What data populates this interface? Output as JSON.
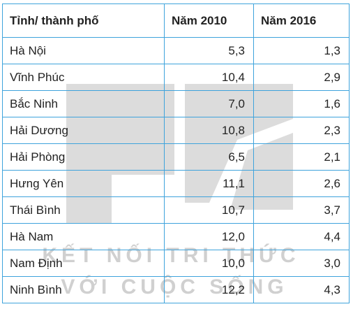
{
  "table": {
    "headers": [
      "Tỉnh/ thành phố",
      "Năm 2010",
      "Năm 2016"
    ],
    "rows": [
      {
        "province": "Hà Nội",
        "y2010": "5,3",
        "y2016": "1,3"
      },
      {
        "province": "Vĩnh Phúc",
        "y2010": "10,4",
        "y2016": "2,9"
      },
      {
        "province": "Bắc Ninh",
        "y2010": "7,0",
        "y2016": "1,6"
      },
      {
        "province": "Hải Dương",
        "y2010": "10,8",
        "y2016": "2,3"
      },
      {
        "province": "Hải Phòng",
        "y2010": "6,5",
        "y2016": "2,1"
      },
      {
        "province": "Hưng Yên",
        "y2010": "11,1",
        "y2016": "2,6"
      },
      {
        "province": "Thái Bình",
        "y2010": "10,7",
        "y2016": "3,7"
      },
      {
        "province": "Hà Nam",
        "y2010": "12,0",
        "y2016": "4,4"
      },
      {
        "province": "Nam Định",
        "y2010": "10,0",
        "y2016": "3,0"
      },
      {
        "province": "Ninh Bình",
        "y2010": "12,2",
        "y2016": "4,3"
      }
    ]
  },
  "watermark": {
    "line1": "KẾT NỐI TRI THỨC",
    "line2": "VỚI CUỘC SỐNG",
    "color": "#d9d9d9"
  }
}
